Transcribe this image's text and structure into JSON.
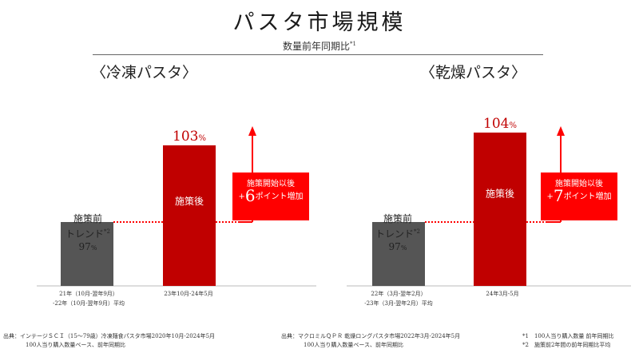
{
  "title": "パスタ市場規模",
  "subtitle": "数量前年同期比",
  "subtitle_note": "*1",
  "panels": [
    {
      "title": "〈冷凍パスタ〉",
      "pre_label_1": "施策前",
      "pre_label_2": "トレンド",
      "pre_label_note": "*2",
      "pre_value": "97",
      "post_value": "103",
      "pct_unit": "%",
      "post_label": "施策後",
      "callout_line1": "施策開始以後",
      "callout_plus": "+",
      "callout_num": "6",
      "callout_tail": "ポイント増加",
      "x_label_pre_1": "21年（10月-翌年9月）",
      "x_label_pre_2": "-22年（10月-翌年9月）平均",
      "x_label_post": "23年10月-24年5月",
      "source_1": "出典：インテージＳＣＩ（15〜79歳）冷凍麺食パスタ市場2020年10月-2024年5月",
      "source_2": "100人当り購入数量ベース、前年同期比"
    },
    {
      "title": "〈乾燥パスタ〉",
      "pre_label_1": "施策前",
      "pre_label_2": "トレンド",
      "pre_label_note": "*2",
      "pre_value": "97",
      "post_value": "104",
      "pct_unit": "%",
      "post_label": "施策後",
      "callout_line1": "施策開始以後",
      "callout_plus": "+",
      "callout_num": "7",
      "callout_tail": "ポイント増加",
      "x_label_pre_1": "22年（3月-翌年2月）",
      "x_label_pre_2": "-23年（3月-翌年2月）平均",
      "x_label_post": "24年3月-5月",
      "source_1": "出典：マクロミルＱＰＲ 乾燥ロングパスタ市場2022年3月-2024年5月",
      "source_2": "100人当り購入数量ベース、前年同期比"
    }
  ],
  "notes": [
    "*1　100人当り購入数量 前年同期比",
    "*2　施策前2年間の前年同期比平均"
  ],
  "colors": {
    "pre_bar": "#555555",
    "post_bar": "#c00000",
    "accent": "#ff0000"
  },
  "chart_data": [
    {
      "type": "bar",
      "title": "〈冷凍パスタ〉",
      "categories": [
        "21年（10月-翌年9月）-22年（10月-翌年9月）平均",
        "23年10月-24年5月"
      ],
      "values": [
        97,
        103
      ],
      "unit": "%",
      "annotation": "施策開始以後 +6ポイント増加"
    },
    {
      "type": "bar",
      "title": "〈乾燥パスタ〉",
      "categories": [
        "22年（3月-翌年2月）-23年（3月-翌年2月）平均",
        "24年3月-5月"
      ],
      "values": [
        97,
        104
      ],
      "unit": "%",
      "annotation": "施策開始以後 +7ポイント増加"
    }
  ]
}
